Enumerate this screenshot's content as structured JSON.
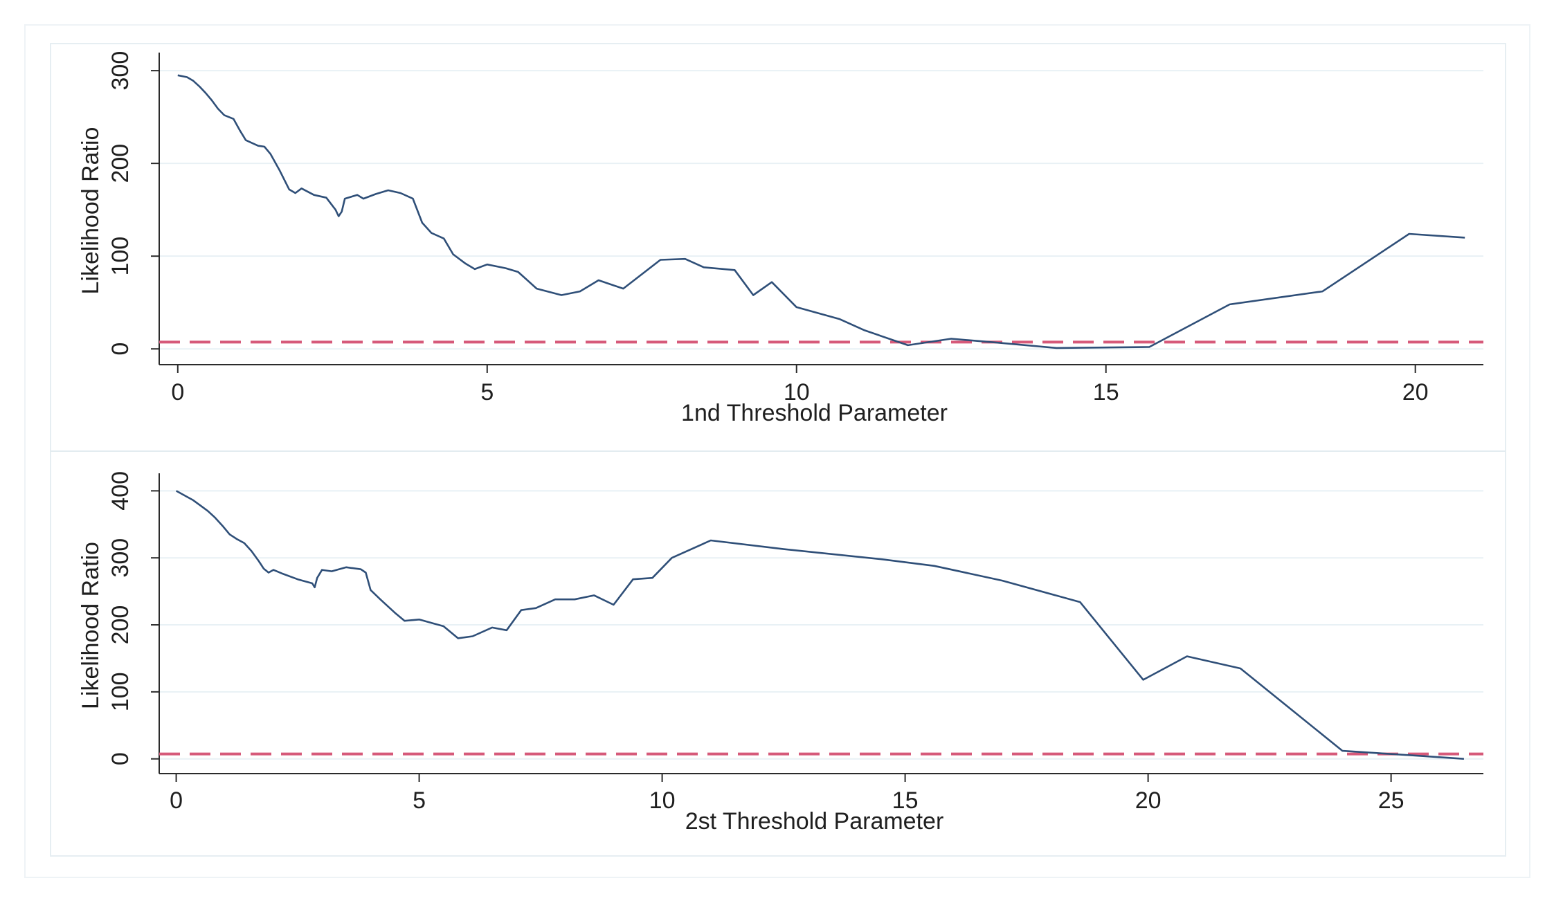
{
  "colors": {
    "line": "#2f4f78",
    "threshold": "#d65a7a",
    "grid": "#e8f1f5",
    "axis": "#2b2b2b",
    "panel_sep": "#e3ecf0"
  },
  "chart_data": [
    {
      "type": "line",
      "title": "",
      "xlabel": "1nd Threshold Parameter",
      "ylabel": "Likelihood Ratio",
      "xlim": [
        -0.3,
        21.1
      ],
      "ylim": [
        -17,
        315
      ],
      "xticks": [
        0,
        5,
        10,
        15,
        20
      ],
      "yticks": [
        0,
        100,
        200,
        300
      ],
      "threshold": 7.35,
      "series": [
        {
          "x": [
            0,
            0.15,
            0.25,
            0.35,
            0.45,
            0.55,
            0.65,
            0.75,
            0.9,
            1.0,
            1.1,
            1.2,
            1.3,
            1.4,
            1.5,
            1.65,
            1.8,
            1.9,
            2.0,
            2.2,
            2.4,
            2.55,
            2.6,
            2.65,
            2.7,
            2.9,
            3.0,
            3.2,
            3.4,
            3.6,
            3.8,
            3.95,
            4.1,
            4.3,
            4.45,
            4.65,
            4.8,
            5.0,
            5.3,
            5.5,
            5.8,
            6.2,
            6.5,
            6.8,
            7.2,
            7.8,
            8.2,
            8.5,
            9.0,
            9.3,
            9.6,
            10.0,
            10.7,
            11.1,
            11.8,
            12.5,
            13.2,
            14.2,
            15.7,
            17.0,
            18.5,
            19.9,
            20.8
          ],
          "values": [
            295,
            293,
            289,
            283,
            276,
            268,
            259,
            252,
            248,
            236,
            225,
            222,
            219,
            218,
            210,
            192,
            172,
            168,
            173,
            166,
            163,
            150,
            143,
            148,
            162,
            166,
            162,
            167,
            171,
            168,
            162,
            136,
            125,
            119,
            102,
            92,
            86,
            91,
            87,
            83,
            65,
            58,
            62,
            74,
            65,
            96,
            97,
            88,
            85,
            58,
            72,
            45,
            32,
            20,
            4,
            11,
            7,
            1,
            2,
            48,
            62,
            124,
            120
          ]
        }
      ]
    },
    {
      "type": "line",
      "title": "",
      "xlabel": "2st Threshold Parameter",
      "ylabel": "Likelihood Ratio",
      "xlim": [
        -0.35,
        26.9
      ],
      "ylim": [
        -22,
        420
      ],
      "xticks": [
        0,
        5,
        10,
        15,
        20,
        25
      ],
      "yticks": [
        0,
        100,
        200,
        300,
        400
      ],
      "threshold": 7.35,
      "series": [
        {
          "x": [
            0,
            0.2,
            0.35,
            0.5,
            0.65,
            0.8,
            0.95,
            1.1,
            1.25,
            1.4,
            1.55,
            1.7,
            1.8,
            1.9,
            2.0,
            2.2,
            2.5,
            2.8,
            2.85,
            2.9,
            3.0,
            3.2,
            3.5,
            3.8,
            3.9,
            4.0,
            4.2,
            4.5,
            4.7,
            5.0,
            5.3,
            5.5,
            5.8,
            6.1,
            6.5,
            6.8,
            7.1,
            7.4,
            7.8,
            8.2,
            8.6,
            9.0,
            9.4,
            9.8,
            10.2,
            11.0,
            12.5,
            14.5,
            15.6,
            17.0,
            18.6,
            19.9,
            20.8,
            21.9,
            24.0,
            25.5,
            26.5
          ],
          "values": [
            400,
            392,
            386,
            378,
            370,
            360,
            348,
            335,
            328,
            322,
            310,
            295,
            284,
            278,
            282,
            276,
            268,
            262,
            256,
            270,
            282,
            280,
            286,
            283,
            278,
            252,
            238,
            218,
            206,
            208,
            202,
            198,
            180,
            183,
            196,
            192,
            222,
            225,
            238,
            238,
            244,
            230,
            268,
            270,
            300,
            326,
            313,
            298,
            288,
            266,
            234,
            118,
            153,
            135,
            12,
            5,
            0
          ]
        }
      ]
    }
  ]
}
